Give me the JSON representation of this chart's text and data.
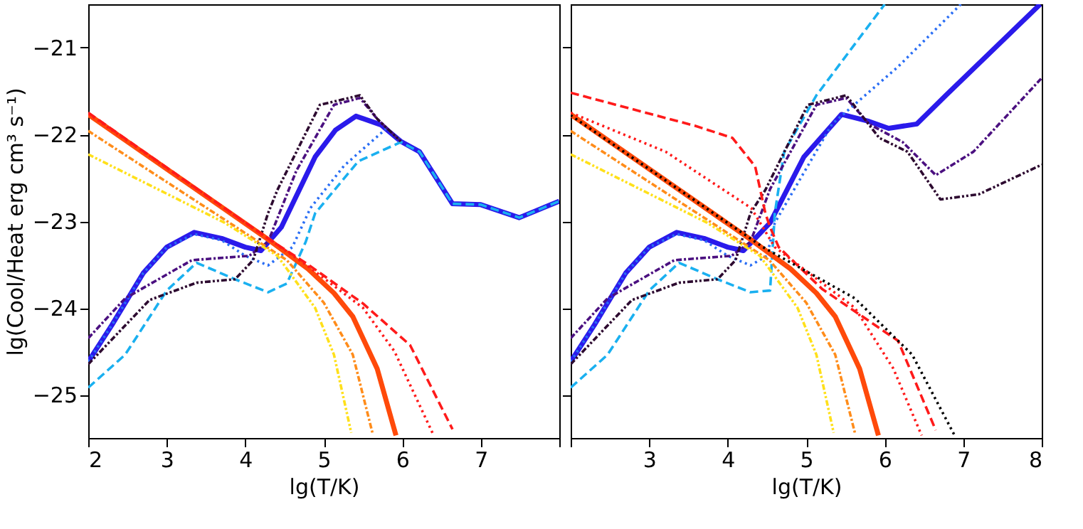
{
  "chart_data": [
    {
      "type": "line",
      "xlabel": "lg(T/K)",
      "ylabel": "lg(Cool/Heat erg cm³ s⁻¹)",
      "xlim": [
        2,
        8
      ],
      "ylim": [
        -25.5,
        -20.5
      ],
      "xticks": [
        2,
        3,
        4,
        5,
        6,
        7,
        {
          "value": 8,
          "label": null
        }
      ],
      "yticks": [
        -25,
        -24,
        -23,
        -22,
        -21
      ],
      "grid": false,
      "marker": "none",
      "series": [
        {
          "color": "#2a1aeb",
          "line_style": "solid",
          "x": [
            2,
            2.3,
            2.7,
            3.0,
            3.35,
            3.7,
            4.0,
            4.2,
            4.46,
            4.89,
            5.15,
            5.41,
            5.73,
            5.98,
            6.22,
            6.64,
            7.0,
            7.49,
            8.0
          ],
          "values": [
            -24.62,
            -24.2,
            -23.6,
            -23.3,
            -23.13,
            -23.2,
            -23.3,
            -23.34,
            -23.07,
            -22.26,
            -21.95,
            -21.79,
            -21.89,
            -22.08,
            -22.2,
            -22.8,
            -22.81,
            -22.96,
            -22.77
          ]
        },
        {
          "color": "#2a6ef5",
          "line_style": "dotted",
          "x": [
            2,
            2.3,
            2.7,
            3.0,
            3.35,
            3.7,
            4.0,
            4.29,
            4.6,
            4.83,
            5.26,
            5.8,
            6.0
          ],
          "values": [
            -24.62,
            -24.2,
            -23.6,
            -23.3,
            -23.15,
            -23.22,
            -23.4,
            -23.51,
            -23.3,
            -22.85,
            -22.36,
            -21.93,
            -22.09
          ]
        },
        {
          "color": "#1ab0f0",
          "line_style": "dashed",
          "x": [
            2,
            2.47,
            3.0,
            3.38,
            3.87,
            4.29,
            4.53,
            4.77,
            4.89,
            5.44,
            5.98,
            6.22,
            6.64,
            7.0,
            7.49,
            8.0
          ],
          "values": [
            -24.92,
            -24.54,
            -23.8,
            -23.48,
            -23.67,
            -23.82,
            -23.72,
            -23.24,
            -22.91,
            -22.31,
            -22.09,
            -22.2,
            -22.8,
            -22.81,
            -22.96,
            -22.77
          ]
        },
        {
          "color": "#4b1080",
          "line_style": "dashdot",
          "x": [
            2,
            2.47,
            3.32,
            4.05,
            4.29,
            4.65,
            5.13,
            5.46,
            5.68,
            5.98
          ],
          "values": [
            -24.35,
            -23.89,
            -23.45,
            -23.4,
            -23.24,
            -22.42,
            -21.66,
            -21.58,
            -21.82,
            -22.08
          ]
        },
        {
          "color": "#2d0a30",
          "line_style": "dashdotdot",
          "x": [
            2,
            2.78,
            3.38,
            3.87,
            4.1,
            4.29,
            4.41,
            4.95,
            5.46,
            5.68,
            5.98
          ],
          "values": [
            -24.65,
            -23.91,
            -23.71,
            -23.67,
            -23.45,
            -22.91,
            -22.64,
            -21.66,
            -21.55,
            -21.82,
            -22.08
          ]
        },
        {
          "color": "#ff4a0a",
          "line_style": "solid",
          "x": [
            2,
            4.29,
            4.8,
            5.13,
            5.37,
            5.68,
            5.92
          ],
          "values": [
            -21.77,
            -23.21,
            -23.55,
            -23.83,
            -24.1,
            -24.7,
            -25.47
          ]
        },
        {
          "color": "#ff1a1a",
          "line_style": "dashed",
          "x": [
            2,
            4.29,
            4.8,
            5.5,
            6.1,
            6.64
          ],
          "values": [
            -21.75,
            -23.2,
            -23.5,
            -23.95,
            -24.43,
            -25.4
          ]
        },
        {
          "color": "#ff1a1a",
          "line_style": "dotted",
          "x": [
            2,
            4.29,
            4.8,
            5.5,
            5.9,
            6.4
          ],
          "values": [
            -21.76,
            -23.2,
            -23.52,
            -24.0,
            -24.5,
            -25.47
          ]
        },
        {
          "color": "#ff8c1a",
          "line_style": "dashdot",
          "x": [
            2,
            4.53,
            5.0,
            5.37,
            5.62
          ],
          "values": [
            -21.96,
            -23.45,
            -23.94,
            -24.54,
            -25.44
          ]
        },
        {
          "color": "#ffe01a",
          "line_style": "dashdotdot",
          "x": [
            2,
            3.74,
            4.41,
            4.89,
            5.13,
            5.35
          ],
          "values": [
            -22.23,
            -23.02,
            -23.4,
            -24.0,
            -24.54,
            -25.44
          ]
        }
      ]
    },
    {
      "type": "line",
      "xlabel": "lg(T/K)",
      "xlim": [
        2,
        8
      ],
      "ylim": [
        -25.5,
        -20.5
      ],
      "xticks": [
        {
          "value": 2,
          "label": null
        },
        3,
        4,
        5,
        6,
        7,
        8
      ],
      "yticks": [
        -25,
        -24,
        -23,
        -22,
        -21
      ],
      "tick_labels": "x",
      "grid": false,
      "marker": "none",
      "series": [
        {
          "color": "#2a1aeb",
          "line_style": "solid",
          "x": [
            2,
            2.3,
            2.7,
            3.0,
            3.35,
            3.7,
            4.0,
            4.2,
            4.54,
            4.97,
            5.45,
            5.8,
            6.05,
            6.41,
            6.78,
            7.98
          ],
          "values": [
            -24.62,
            -24.2,
            -23.6,
            -23.3,
            -23.13,
            -23.2,
            -23.3,
            -23.34,
            -23.02,
            -22.26,
            -21.77,
            -21.85,
            -21.93,
            -21.88,
            -21.55,
            -20.5
          ]
        },
        {
          "color": "#2a6ef5",
          "line_style": "dotted",
          "x": [
            2,
            2.3,
            2.7,
            3.0,
            3.35,
            3.7,
            4.0,
            4.29,
            4.5,
            4.6,
            5.33,
            6.17,
            6.97
          ],
          "values": [
            -24.62,
            -24.2,
            -23.6,
            -23.3,
            -23.15,
            -23.22,
            -23.4,
            -23.51,
            -23.4,
            -23.02,
            -21.88,
            -21.22,
            -20.5
          ]
        },
        {
          "color": "#1ab0f0",
          "line_style": "dashed",
          "x": [
            2,
            2.47,
            3.0,
            3.38,
            3.87,
            4.29,
            4.54,
            4.6,
            4.72,
            5.13,
            6.0
          ],
          "values": [
            -24.92,
            -24.54,
            -23.8,
            -23.48,
            -23.67,
            -23.82,
            -23.8,
            -22.91,
            -22.2,
            -21.55,
            -20.5
          ]
        },
        {
          "color": "#4b1080",
          "line_style": "dashdot",
          "x": [
            2,
            2.47,
            3.32,
            4.05,
            4.29,
            4.54,
            5.13,
            5.51,
            5.8,
            6.23,
            6.65,
            7.13,
            8.0
          ],
          "values": [
            -24.35,
            -23.89,
            -23.45,
            -23.4,
            -23.24,
            -22.63,
            -21.66,
            -21.58,
            -21.88,
            -22.09,
            -22.47,
            -22.2,
            -21.35
          ]
        },
        {
          "color": "#2d0a30",
          "line_style": "dashdotdot",
          "x": [
            2,
            2.78,
            3.38,
            3.87,
            4.1,
            4.29,
            4.48,
            5.02,
            5.51,
            5.93,
            6.29,
            6.71,
            7.2,
            8.0
          ],
          "values": [
            -24.65,
            -23.91,
            -23.71,
            -23.67,
            -23.45,
            -22.91,
            -22.64,
            -21.66,
            -21.55,
            -22.04,
            -22.2,
            -22.75,
            -22.69,
            -22.35
          ]
        },
        {
          "color": "#ff4a0a",
          "line_style": "solid",
          "x": [
            2,
            4.29,
            4.8,
            5.13,
            5.37,
            5.68,
            5.92
          ],
          "values": [
            -21.77,
            -23.21,
            -23.55,
            -23.83,
            -24.1,
            -24.7,
            -25.47
          ]
        },
        {
          "color": "#ff1a1a",
          "line_style": "dashed",
          "x": [
            2,
            3.58,
            4.06,
            4.35,
            4.48,
            4.54,
            4.65,
            5.2,
            6.17,
            6.65
          ],
          "values": [
            -21.52,
            -21.9,
            -22.04,
            -22.37,
            -22.91,
            -23.07,
            -23.3,
            -23.78,
            -24.38,
            -25.41
          ]
        },
        {
          "color": "#ff1a1a",
          "line_style": "dotted",
          "x": [
            2,
            3.21,
            4.3,
            4.6,
            5.62,
            6.11,
            6.47
          ],
          "values": [
            -21.75,
            -22.2,
            -22.85,
            -23.3,
            -24.0,
            -24.7,
            -25.47
          ]
        },
        {
          "color": "#000000",
          "line_style": "dotted",
          "x": [
            2,
            4.45,
            5.62,
            6.35,
            6.89
          ],
          "values": [
            -21.78,
            -23.3,
            -23.89,
            -24.54,
            -25.47
          ]
        },
        {
          "color": "#ff8c1a",
          "line_style": "dashdot",
          "x": [
            2,
            4.53,
            5.0,
            5.37,
            5.62
          ],
          "values": [
            -21.96,
            -23.45,
            -23.94,
            -24.54,
            -25.44
          ]
        },
        {
          "color": "#ffe01a",
          "line_style": "dashdotdot",
          "x": [
            2,
            3.74,
            4.41,
            4.89,
            5.13,
            5.35
          ],
          "values": [
            -22.23,
            -23.02,
            -23.4,
            -24.0,
            -24.54,
            -25.44
          ]
        }
      ]
    }
  ]
}
